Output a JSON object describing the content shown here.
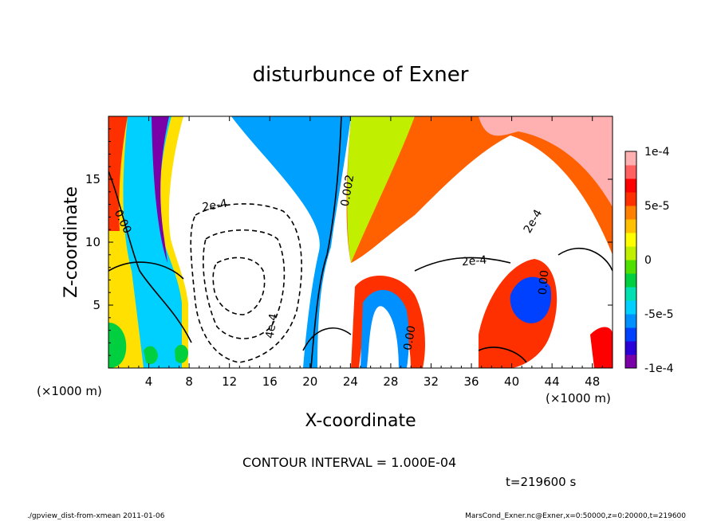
{
  "chart_data": {
    "type": "heatmap",
    "title": "disturbunce of Exner",
    "xlabel": "X-coordinate",
    "ylabel": "Z-coordinate",
    "x_unit": "(×1000 m)",
    "y_unit": "(×1000 m)",
    "xlim": [
      0,
      50
    ],
    "ylim": [
      0,
      20
    ],
    "x_ticks": [
      4,
      8,
      12,
      16,
      20,
      24,
      28,
      32,
      36,
      40,
      44,
      48
    ],
    "y_ticks": [
      5,
      10,
      15
    ],
    "colorbar": {
      "range": [
        -0.0001,
        0.0001
      ],
      "tick_labels": [
        {
          "value": 0.0001,
          "label": "1e-4"
        },
        {
          "value": 5e-05,
          "label": "5e-5"
        },
        {
          "value": 0,
          "label": "0"
        },
        {
          "value": -5e-05,
          "label": "-5e-5"
        },
        {
          "value": -0.0001,
          "label": "-1e-4"
        }
      ],
      "colors": [
        "#7a00a8",
        "#2a00d8",
        "#0040ff",
        "#0090ff",
        "#00d0ff",
        "#00e0b0",
        "#00d040",
        "#50e000",
        "#c0f000",
        "#ffff00",
        "#ffc000",
        "#ff8000",
        "#ff3000",
        "#ff0000",
        "#ff6060",
        "#ffb0b0"
      ]
    },
    "contour_labels": [
      "0.00",
      "2e-4",
      "0.002",
      "4e-4",
      "2e-4",
      "2e-4",
      "0.00",
      "0.00"
    ],
    "contour_interval_label": "CONTOUR INTERVAL = 1.000E-04",
    "time_label": "t=219600 s"
  },
  "footer": {
    "left": "./gpview_dist-from-xmean  2011-01-06",
    "right": "MarsCond_Exner.nc@Exner,x=0:50000,z=0:20000,t=219600"
  }
}
